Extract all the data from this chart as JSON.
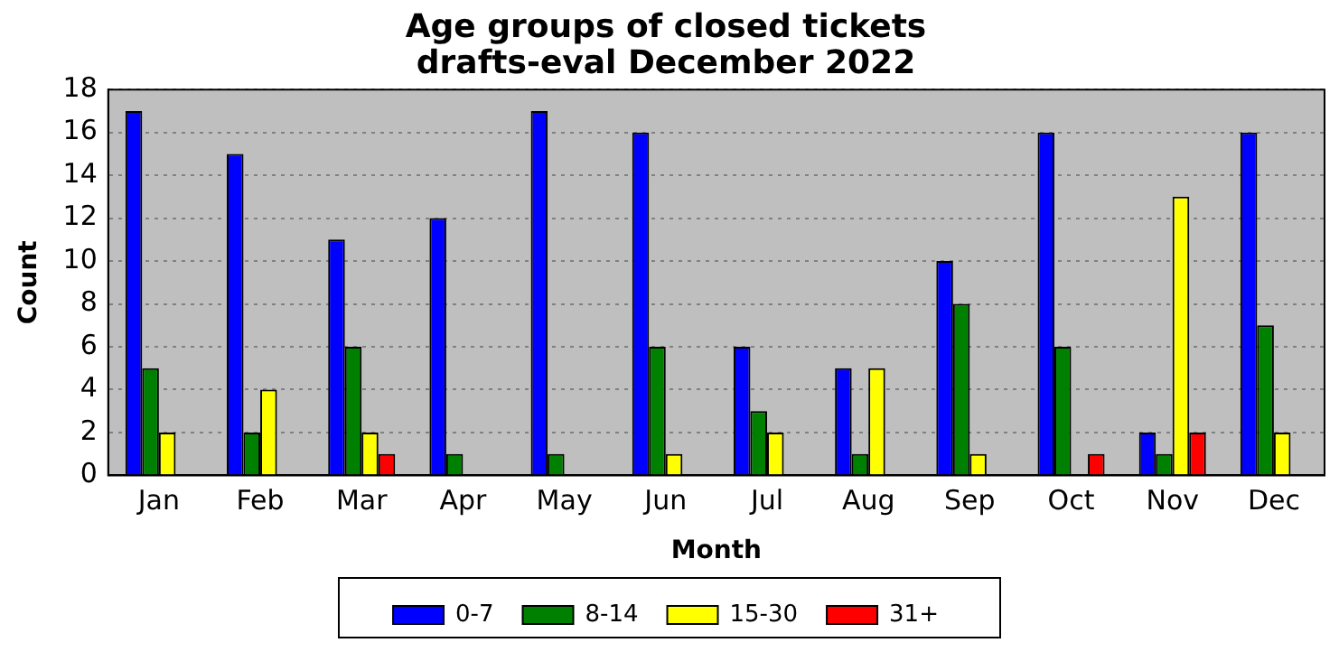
{
  "chart_data": {
    "type": "bar",
    "title": "Age groups of closed tickets\ndrafts-eval December 2022",
    "xlabel": "Month",
    "ylabel": "Count",
    "categories": [
      "Jan",
      "Feb",
      "Mar",
      "Apr",
      "May",
      "Jun",
      "Jul",
      "Aug",
      "Sep",
      "Oct",
      "Nov",
      "Dec"
    ],
    "series": [
      {
        "name": "0-7",
        "color": "#0000ff",
        "values": [
          17,
          15,
          11,
          12,
          17,
          16,
          6,
          5,
          10,
          16,
          2,
          16
        ]
      },
      {
        "name": "8-14",
        "color": "#008000",
        "values": [
          5,
          2,
          6,
          1,
          1,
          6,
          3,
          1,
          8,
          6,
          1,
          7
        ]
      },
      {
        "name": "15-30",
        "color": "#ffff00",
        "values": [
          2,
          4,
          2,
          0,
          0,
          1,
          2,
          5,
          1,
          0,
          13,
          2
        ]
      },
      {
        "name": "31+",
        "color": "#ff0000",
        "values": [
          0,
          0,
          1,
          0,
          0,
          0,
          0,
          0,
          0,
          1,
          2,
          0
        ]
      }
    ],
    "ylim": [
      0,
      18
    ],
    "yticks": [
      0,
      2,
      4,
      6,
      8,
      10,
      12,
      14,
      16,
      18
    ],
    "grid": "y",
    "legend": "bottom"
  }
}
